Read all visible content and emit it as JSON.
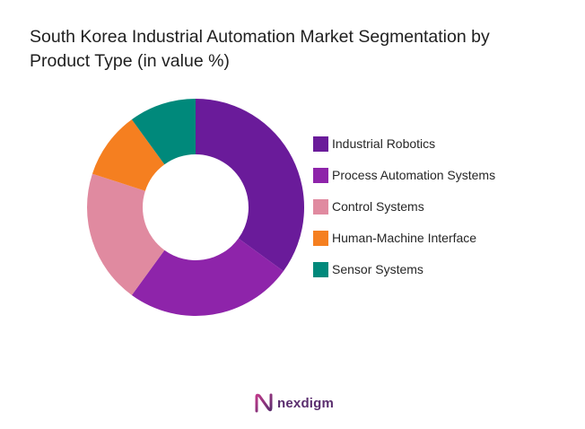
{
  "chart_data": {
    "type": "pie",
    "variant": "donut",
    "title": "South Korea Industrial Automation Market Segmentation by Product Type (in value %)",
    "title_lines": [
      "South Korea Industrial Automation Market Segmentation by",
      "Product Type (in value %)"
    ],
    "legend_position": "right",
    "slices": [
      {
        "label": "Industrial Robotics",
        "value": 35,
        "color": "#6a1b9a"
      },
      {
        "label": "Process Automation Systems",
        "value": 25,
        "color": "#8e24aa"
      },
      {
        "label": "Control Systems",
        "value": 20,
        "color": "#e08aa0"
      },
      {
        "label": "Human-Machine Interface",
        "value": 10,
        "color": "#f57f20"
      },
      {
        "label": "Sensor Systems",
        "value": 10,
        "color": "#00897b"
      }
    ]
  },
  "brand": {
    "name": "nexdigm",
    "color": "#5a2d6e"
  }
}
